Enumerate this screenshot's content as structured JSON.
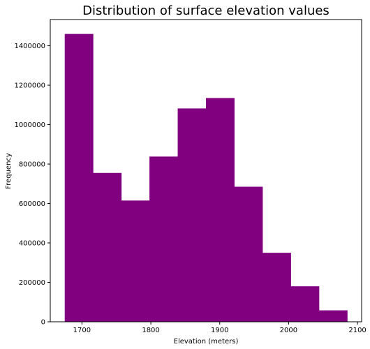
{
  "chart_data": {
    "type": "bar",
    "title": "Distribution of surface elevation values",
    "xlabel": "Elevation (meters)",
    "ylabel": "Frequency",
    "bar_color": "#800080",
    "bin_edges": [
      1675,
      1716,
      1757,
      1798,
      1839,
      1880,
      1921,
      1962,
      2003,
      2044,
      2085
    ],
    "values": [
      1460000,
      755000,
      615000,
      838000,
      1082000,
      1135000,
      685000,
      350000,
      180000,
      58000
    ],
    "xlim": [
      1654,
      2106
    ],
    "ylim": [
      0,
      1533000
    ],
    "xticks": [
      1700,
      1800,
      1900,
      2000,
      2100
    ],
    "yticks": [
      0,
      200000,
      400000,
      600000,
      800000,
      1000000,
      1200000,
      1400000
    ],
    "grid": false
  }
}
